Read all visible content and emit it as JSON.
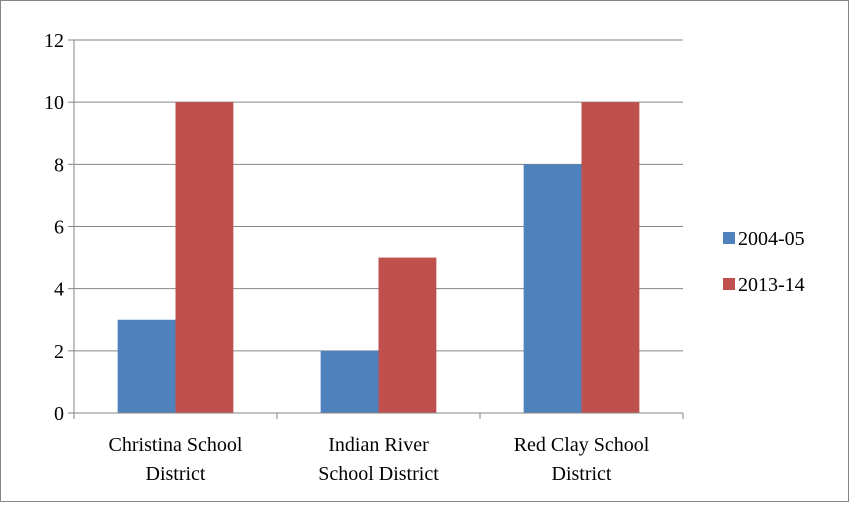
{
  "chart_data": {
    "type": "bar",
    "categories": [
      [
        "Christina School",
        "District"
      ],
      [
        "Indian River",
        "School District"
      ],
      [
        "Red Clay School",
        "District"
      ]
    ],
    "series": [
      {
        "name": "2004-05",
        "values": [
          3,
          2,
          8
        ],
        "color": "#4F81BD"
      },
      {
        "name": "2013-14",
        "values": [
          10,
          5,
          10
        ],
        "color": "#C0504D"
      }
    ],
    "ylim": [
      0,
      12
    ],
    "yticks": [
      "0",
      "2",
      "4",
      "6",
      "8",
      "10",
      "12"
    ],
    "grid": true,
    "legend_position": "right"
  }
}
